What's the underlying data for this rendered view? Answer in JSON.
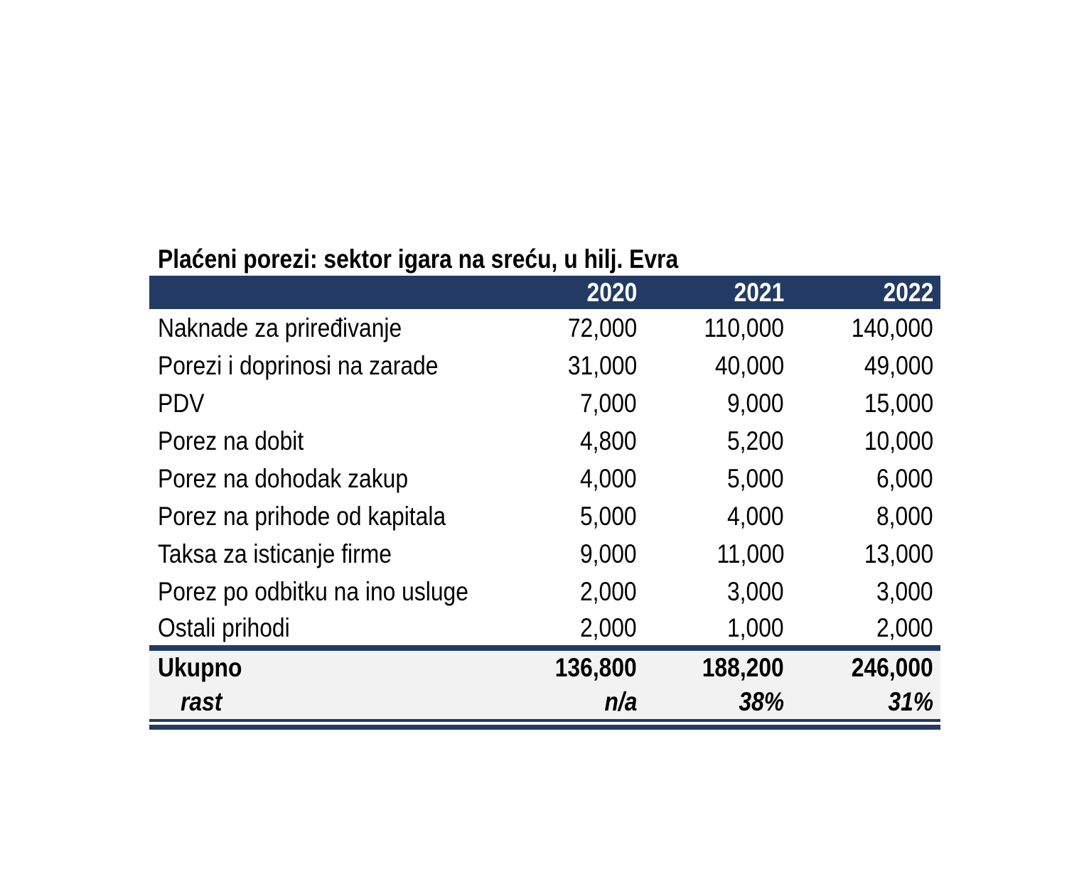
{
  "title": "Plaćeni porezi: sektor igara na sreću, u hilj. Evra",
  "table": {
    "header": {
      "label": "",
      "years": [
        "2020",
        "2021",
        "2022"
      ]
    },
    "rows": [
      {
        "label": "Naknade za priređivanje",
        "values": [
          "72,000",
          "110,000",
          "140,000"
        ]
      },
      {
        "label": "Porezi i doprinosi na zarade",
        "values": [
          "31,000",
          "40,000",
          "49,000"
        ]
      },
      {
        "label": "PDV",
        "values": [
          "7,000",
          "9,000",
          "15,000"
        ]
      },
      {
        "label": "Porez na dobit",
        "values": [
          "4,800",
          "5,200",
          "10,000"
        ]
      },
      {
        "label": "Porez na dohodak zakup",
        "values": [
          "4,000",
          "5,000",
          "6,000"
        ]
      },
      {
        "label": "Porez na prihode od kapitala",
        "values": [
          "5,000",
          "4,000",
          "8,000"
        ]
      },
      {
        "label": "Taksa za isticanje firme",
        "values": [
          "9,000",
          "11,000",
          "13,000"
        ]
      },
      {
        "label": "Porez po odbitku na ino usluge",
        "values": [
          "2,000",
          "3,000",
          "3,000"
        ]
      },
      {
        "label": "Ostali prihodi",
        "values": [
          "2,000",
          "1,000",
          "2,000"
        ]
      }
    ],
    "total": {
      "label": "Ukupno",
      "values": [
        "136,800",
        "188,200",
        "246,000"
      ]
    },
    "growth": {
      "label": "rast",
      "values": [
        "n/a",
        "38%",
        "31%"
      ]
    }
  },
  "colors": {
    "header_bg": "#233B64",
    "header_text": "#FFFFFF",
    "total_bg": "#F2F2F2",
    "text": "#000000"
  }
}
